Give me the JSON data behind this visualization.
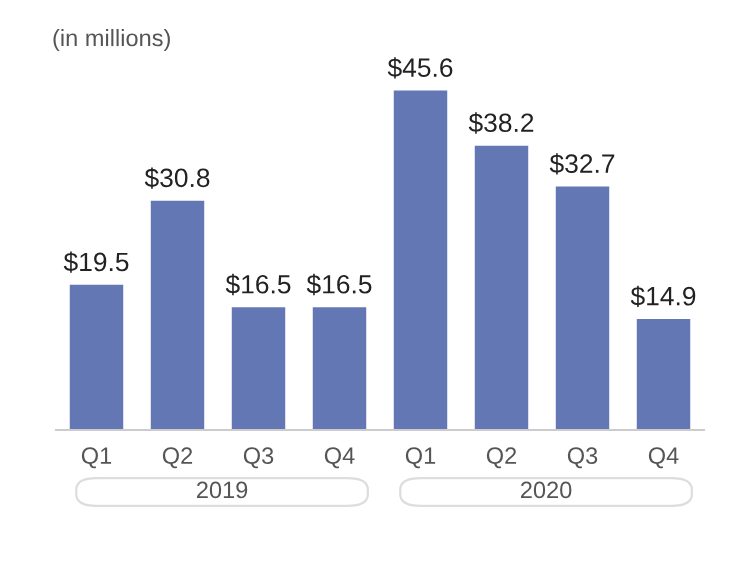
{
  "chart_data": {
    "type": "bar",
    "subtitle": "(in millions)",
    "categories": [
      "Q1",
      "Q2",
      "Q3",
      "Q4",
      "Q1",
      "Q2",
      "Q3",
      "Q4"
    ],
    "values": [
      19.5,
      30.8,
      16.5,
      16.5,
      45.6,
      38.2,
      32.7,
      14.9
    ],
    "value_labels": [
      "$19.5",
      "$30.8",
      "$16.5",
      "$16.5",
      "$45.6",
      "$38.2",
      "$32.7",
      "$14.9"
    ],
    "color": "#6477b5",
    "annotations": [
      "2019",
      "2020"
    ],
    "grid": false,
    "legend": false
  }
}
